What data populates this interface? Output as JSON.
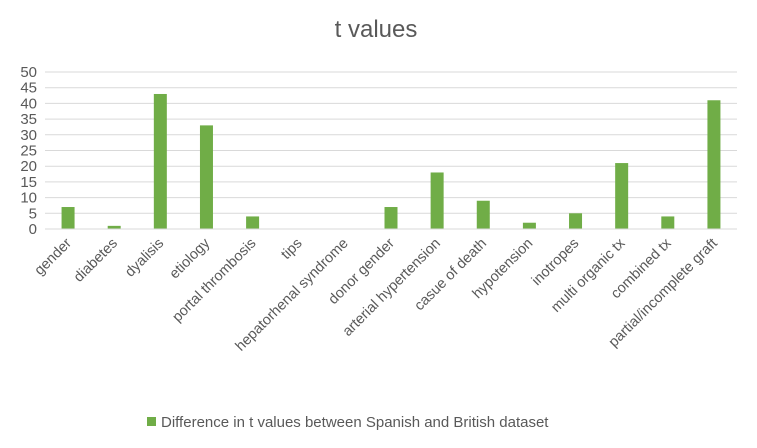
{
  "chart_data": {
    "type": "bar",
    "title": "t values",
    "categories": [
      "gender",
      "diabetes",
      "dyalisis",
      "etiology",
      "portal thrombosis",
      "tips",
      "hepatorhenal syndrome",
      "donor gender",
      "arterial hypertension",
      "casue of death",
      "hypotension",
      "inotropes",
      "multi organic tx",
      "combined tx",
      "partial/incomplete graft"
    ],
    "series": [
      {
        "name": "Difference in t values between Spanish and British dataset",
        "color": "#70ad47",
        "values": [
          7,
          1,
          43,
          33,
          4,
          0,
          0,
          7,
          18,
          9,
          2,
          5,
          21,
          4,
          41
        ]
      }
    ],
    "ylim": [
      0,
      50
    ],
    "yticks": [
      0,
      5,
      10,
      15,
      20,
      25,
      30,
      35,
      40,
      45,
      50
    ],
    "grid": true,
    "legend": "bottom",
    "xlabel": "",
    "ylabel": ""
  }
}
